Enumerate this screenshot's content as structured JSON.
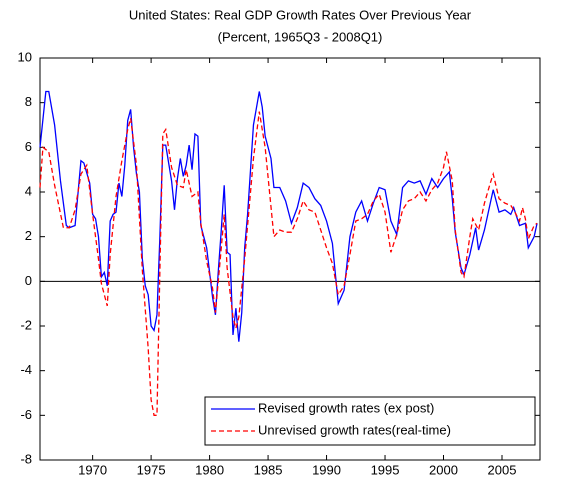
{
  "chart_data": {
    "type": "line",
    "title": "United States: Real GDP Growth Rates Over Previous Year",
    "subtitle": "(Percent, 1965Q3 - 2008Q1)",
    "xlim": [
      1965.5,
      2008.25
    ],
    "xticks": [
      1970,
      1975,
      1980,
      1985,
      1990,
      1995,
      2000,
      2005
    ],
    "ylim": [
      -8,
      10
    ],
    "yticks": [
      -8,
      -6,
      -4,
      -2,
      0,
      2,
      4,
      6,
      8,
      10
    ],
    "zero_line": true,
    "legend_position": "lower right",
    "series": [
      {
        "name": "Revised growth rates (ex post)",
        "color": "#0000ff",
        "dash": "none",
        "x": [
          1965.5,
          1966.0,
          1966.25,
          1966.75,
          1967.25,
          1967.75,
          1968.0,
          1968.5,
          1969.0,
          1969.25,
          1969.75,
          1970.0,
          1970.25,
          1970.5,
          1970.75,
          1971.0,
          1971.25,
          1971.5,
          1971.75,
          1972.0,
          1972.25,
          1972.5,
          1972.75,
          1973.0,
          1973.25,
          1973.5,
          1973.75,
          1974.0,
          1974.25,
          1974.5,
          1974.75,
          1975.0,
          1975.25,
          1975.5,
          1975.75,
          1976.0,
          1976.25,
          1976.5,
          1976.75,
          1977.0,
          1977.25,
          1977.5,
          1977.75,
          1978.0,
          1978.25,
          1978.5,
          1978.75,
          1979.0,
          1979.25,
          1979.5,
          1979.75,
          1980.25,
          1980.5,
          1980.75,
          1981.0,
          1981.25,
          1981.5,
          1981.75,
          1982.0,
          1982.25,
          1982.5,
          1982.75,
          1983.0,
          1983.25,
          1983.5,
          1983.75,
          1984.25,
          1984.5,
          1984.75,
          1985.25,
          1985.5,
          1986.0,
          1986.5,
          1987.0,
          1987.5,
          1988.0,
          1988.5,
          1989.0,
          1989.5,
          1990.0,
          1990.5,
          1991.0,
          1991.5,
          1992.0,
          1992.5,
          1993.0,
          1993.5,
          1994.0,
          1994.5,
          1995.0,
          1995.5,
          1996.0,
          1996.5,
          1997.0,
          1997.5,
          1998.0,
          1998.5,
          1999.0,
          1999.5,
          2000.0,
          2000.5,
          2000.75,
          2001.0,
          2001.5,
          2001.75,
          2002.25,
          2002.75,
          2003.0,
          2003.5,
          2004.0,
          2004.25,
          2004.75,
          2005.25,
          2005.75,
          2006.0,
          2006.5,
          2007.0,
          2007.25,
          2007.75,
          2008.0
        ],
        "values": [
          6,
          8.5,
          8.5,
          7,
          4.5,
          2.5,
          2.4,
          2.5,
          5.4,
          5.3,
          4.4,
          3,
          2.8,
          2,
          0.2,
          0.4,
          -0.2,
          2.7,
          3,
          3.1,
          4.4,
          3.8,
          5.2,
          7.2,
          7.7,
          6,
          4.8,
          4.0,
          1.0,
          -0.2,
          -0.6,
          -2.0,
          -2.2,
          -1.5,
          2,
          6.1,
          6.1,
          5.3,
          4.5,
          3.2,
          4.6,
          5.5,
          4.7,
          5.2,
          6.1,
          5.0,
          6.6,
          6.5,
          2.5,
          2.0,
          1.5,
          -0.7,
          -1.5,
          0.5,
          2.3,
          4.3,
          1.3,
          1.2,
          -2.4,
          -1.2,
          -2.7,
          -1.4,
          1.5,
          3.0,
          5.0,
          7.0,
          8.5,
          7.8,
          6.5,
          5.5,
          4.2,
          4.2,
          3.6,
          2.6,
          3.3,
          4.4,
          4.2,
          3.7,
          3.4,
          2.7,
          1.7,
          -1.0,
          -0.4,
          2.0,
          3.1,
          3.6,
          2.7,
          3.5,
          4.2,
          4.1,
          2.7,
          2.1,
          4.2,
          4.5,
          4.4,
          4.5,
          3.9,
          4.6,
          4.2,
          4.6,
          4.9,
          3.7,
          2.2,
          0.6,
          0.3,
          1.2,
          2.4,
          1.4,
          2.3,
          3.5,
          4.1,
          3.1,
          3.2,
          3.0,
          3.3,
          2.5,
          2.6,
          1.5,
          2.0,
          2.6
        ]
      },
      {
        "name": "Unrevised growth rates(real-time)",
        "color": "#ff0000",
        "dash": "5,3",
        "x": [
          1965.5,
          1965.75,
          1966.25,
          1966.75,
          1967.5,
          1968.0,
          1968.5,
          1969.0,
          1969.5,
          1970.0,
          1970.5,
          1970.75,
          1971.0,
          1971.25,
          1971.5,
          1972.0,
          1972.5,
          1973.0,
          1973.25,
          1973.75,
          1974.25,
          1974.75,
          1975.0,
          1975.25,
          1975.5,
          1975.75,
          1976.0,
          1976.25,
          1976.75,
          1977.25,
          1977.75,
          1978.0,
          1978.5,
          1979.0,
          1979.25,
          1979.75,
          1980.25,
          1980.5,
          1981.0,
          1981.25,
          1981.5,
          1981.75,
          1982.0,
          1982.25,
          1982.5,
          1983.0,
          1983.75,
          1984.25,
          1984.75,
          1985.5,
          1986.0,
          1986.5,
          1987.0,
          1987.5,
          1988.0,
          1988.5,
          1989.0,
          1989.5,
          1990.0,
          1990.5,
          1991.0,
          1991.5,
          1992.0,
          1992.5,
          1993.0,
          1993.5,
          1994.0,
          1994.5,
          1995.0,
          1995.5,
          1996.0,
          1996.5,
          1997.0,
          1997.5,
          1998.0,
          1998.5,
          1999.0,
          1999.5,
          2000.0,
          2000.25,
          2000.75,
          2001.0,
          2001.5,
          2001.75,
          2002.25,
          2002.5,
          2003.0,
          2003.5,
          2004.0,
          2004.25,
          2004.75,
          2005.25,
          2005.75,
          2006.0,
          2006.5,
          2006.75,
          2007.0,
          2007.25,
          2007.75,
          2008.0
        ],
        "values": [
          4.2,
          6,
          5.8,
          4.3,
          2.4,
          2.4,
          3.2,
          4.8,
          5.2,
          3.0,
          1.0,
          -0.1,
          -0.6,
          -1.1,
          1.2,
          3.8,
          5.4,
          6.8,
          7.3,
          5.2,
          0.5,
          -3.0,
          -5.3,
          -6.0,
          -6.0,
          0.5,
          6.6,
          6.8,
          5.1,
          4.3,
          4.2,
          5.0,
          3.8,
          4.0,
          2.6,
          0.9,
          -0.3,
          -1.4,
          1.5,
          3.0,
          0.6,
          -0.5,
          -1.6,
          -2.1,
          -1.6,
          1.0,
          5.5,
          7.6,
          6.0,
          2.0,
          2.3,
          2.2,
          2.2,
          2.8,
          3.6,
          3.2,
          3.1,
          2.3,
          1.5,
          0.8,
          -0.6,
          -0.2,
          1.2,
          2.7,
          2.8,
          3.0,
          3.6,
          3.9,
          3.1,
          1.3,
          2.1,
          3.2,
          3.6,
          3.7,
          4.0,
          3.6,
          4.1,
          4.4,
          5.1,
          5.8,
          4.5,
          2.3,
          0.4,
          0.2,
          2.0,
          2.8,
          2.3,
          3.5,
          4.4,
          4.8,
          3.7,
          3.5,
          3.4,
          3.2,
          2.7,
          3.3,
          2.8,
          1.9,
          2.5,
          2.6
        ]
      }
    ]
  }
}
